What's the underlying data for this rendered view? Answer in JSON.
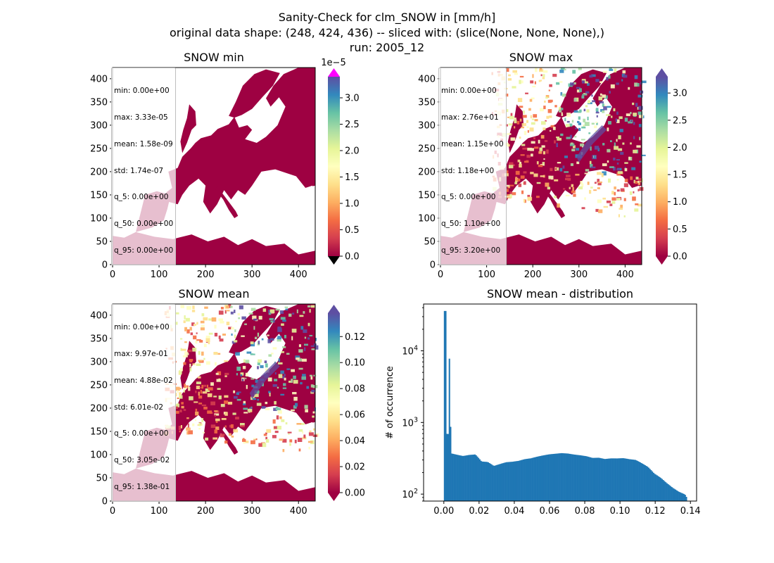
{
  "figure": {
    "title_lines": [
      "Sanity-Check for clm_SNOW in [mm/h]",
      "original data shape: (248, 424, 436) -- sliced with: (slice(None, None, None),)",
      "run: 2005_12"
    ]
  },
  "colors": {
    "map_low": "#9e0142",
    "over": "#ff00ff",
    "under": "#000000",
    "hist_bar": "#1f77b4",
    "spectral_ramp": [
      "#9e0142",
      "#d53e4f",
      "#f46d43",
      "#fdae61",
      "#fee08b",
      "#ffffbf",
      "#e6f598",
      "#abdda4",
      "#66c2a5",
      "#3288bd",
      "#5e4fa2"
    ]
  },
  "panels": [
    {
      "title": "SNOW min",
      "type": "heatmap",
      "x_ticks": [
        "0",
        "100",
        "200",
        "300",
        "400"
      ],
      "y_ticks": [
        "0",
        "50",
        "100",
        "150",
        "200",
        "250",
        "300",
        "350",
        "400"
      ],
      "xlim": [
        0,
        436
      ],
      "ylim": [
        0,
        424
      ],
      "stats": [
        "min: 0.00e+00",
        "max: 3.33e-05",
        "mean: 1.58e-09",
        "std: 1.74e-07",
        "q_5: 0.00e+00",
        "q_50: 0.00e+00",
        "q_95: 0.00e+00"
      ],
      "colorbar": {
        "range": [
          0,
          3.4e-05
        ],
        "ticks": [
          "0.0",
          "0.5",
          "1.0",
          "1.5",
          "2.0",
          "2.5",
          "3.0"
        ],
        "tick_values": [
          0,
          0.5,
          1,
          1.5,
          2,
          2.5,
          3
        ],
        "scale_max": 3.4,
        "offset_text": "1e−5",
        "extend_min": true,
        "extend_max": true
      }
    },
    {
      "title": "SNOW max",
      "type": "heatmap",
      "x_ticks": [
        "0",
        "100",
        "200",
        "300",
        "400"
      ],
      "y_ticks": [
        "0",
        "50",
        "100",
        "150",
        "200",
        "250",
        "300",
        "350",
        "400"
      ],
      "xlim": [
        0,
        436
      ],
      "ylim": [
        0,
        424
      ],
      "stats": [
        "min: 0.00e+00",
        "max: 2.76e+01",
        "mean: 1.15e+00",
        "std: 1.18e+00",
        "q_5: 0.00e+00",
        "q_50: 1.10e+00",
        "q_95: 3.20e+00"
      ],
      "colorbar": {
        "range": [
          0,
          3.3
        ],
        "ticks": [
          "0.0",
          "0.5",
          "1.0",
          "1.5",
          "2.0",
          "2.5",
          "3.0"
        ],
        "tick_values": [
          0,
          0.5,
          1,
          1.5,
          2,
          2.5,
          3
        ],
        "scale_max": 3.3,
        "offset_text": "",
        "extend_min": true,
        "extend_max": true
      }
    },
    {
      "title": "SNOW mean",
      "type": "heatmap",
      "x_ticks": [
        "0",
        "100",
        "200",
        "300",
        "400"
      ],
      "y_ticks": [
        "0",
        "50",
        "100",
        "150",
        "200",
        "250",
        "300",
        "350",
        "400"
      ],
      "xlim": [
        0,
        436
      ],
      "ylim": [
        0,
        424
      ],
      "stats": [
        "min: 0.00e+00",
        "max: 9.97e-01",
        "mean: 4.88e-02",
        "std: 6.01e-02",
        "q_5: 0.00e+00",
        "q_50: 3.05e-02",
        "q_95: 1.38e-01"
      ],
      "colorbar": {
        "range": [
          0,
          0.138
        ],
        "ticks": [
          "0.00",
          "0.02",
          "0.04",
          "0.06",
          "0.08",
          "0.10",
          "0.12"
        ],
        "tick_values": [
          0,
          0.02,
          0.04,
          0.06,
          0.08,
          0.1,
          0.12
        ],
        "scale_max": 0.138,
        "offset_text": "",
        "extend_min": true,
        "extend_max": true
      }
    }
  ],
  "chart_data": {
    "type": "bar",
    "title": "SNOW mean - distribution",
    "xlabel": "",
    "ylabel": "# of occurrence",
    "y_scale": "log",
    "xlim": [
      -0.0115,
      0.1435
    ],
    "ylim": [
      80,
      45000
    ],
    "x_ticks": [
      "0.00",
      "0.02",
      "0.04",
      "0.06",
      "0.08",
      "0.10",
      "0.12",
      "0.14"
    ],
    "x_tick_values": [
      0,
      0.02,
      0.04,
      0.06,
      0.08,
      0.1,
      0.12,
      0.14
    ],
    "y_ticks": [
      "10^2",
      "10^3",
      "10^4"
    ],
    "y_tick_values": [
      100,
      1000,
      10000
    ],
    "bin_width": 0.00069,
    "x": [
      0.0,
      0.0035,
      0.007,
      0.0105,
      0.014,
      0.0175,
      0.021,
      0.0245,
      0.028,
      0.0315,
      0.035,
      0.0385,
      0.042,
      0.0455,
      0.049,
      0.0525,
      0.056,
      0.0595,
      0.063,
      0.0665,
      0.07,
      0.0735,
      0.077,
      0.0805,
      0.084,
      0.0875,
      0.091,
      0.0945,
      0.098,
      0.1015,
      0.105,
      0.1085,
      0.112,
      0.1155,
      0.119,
      0.1225,
      0.126,
      0.1295,
      0.133,
      0.1365,
      0.1375
    ],
    "values": [
      36000,
      380,
      370,
      360,
      375,
      380,
      300,
      290,
      250,
      260,
      270,
      270,
      275,
      290,
      300,
      320,
      340,
      360,
      375,
      390,
      390,
      380,
      370,
      355,
      330,
      325,
      305,
      305,
      300,
      300,
      290,
      285,
      260,
      235,
      195,
      175,
      150,
      130,
      115,
      105,
      95
    ]
  }
}
